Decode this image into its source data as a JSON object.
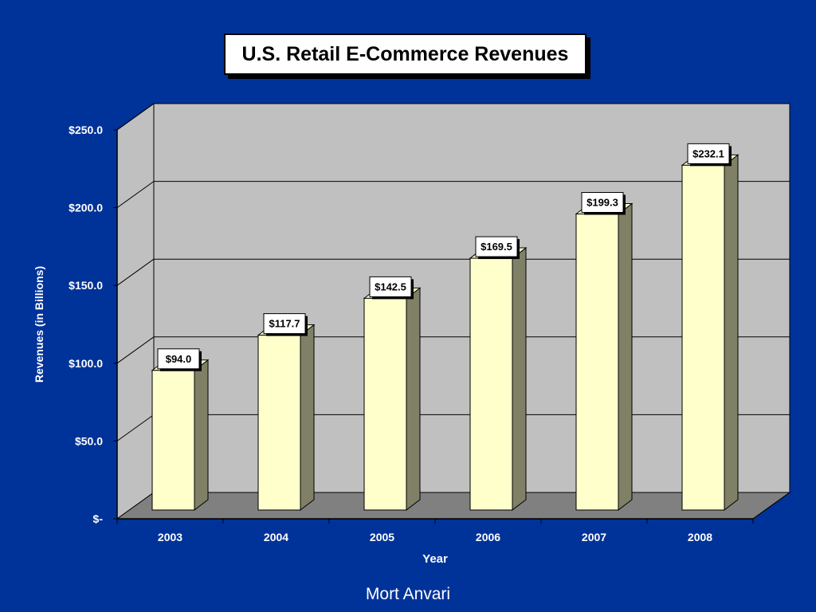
{
  "chart_data": {
    "type": "bar",
    "title": "U.S. Retail E-Commerce Revenues",
    "xlabel": "Year",
    "ylabel": "Revenues (in Billions)",
    "categories": [
      "2003",
      "2004",
      "2005",
      "2006",
      "2007",
      "2008"
    ],
    "values": [
      94.0,
      117.7,
      142.5,
      169.5,
      199.3,
      232.1
    ],
    "data_labels": [
      "$94.0",
      "$117.7",
      "$142.5",
      "$169.5",
      "$199.3",
      "$232.1"
    ],
    "ylim": [
      0,
      250
    ],
    "yticks": [
      0,
      50,
      100,
      150,
      200,
      250
    ],
    "ytick_labels": [
      "$-",
      "$50.0",
      "$100.0",
      "$150.0",
      "$200.0",
      "$250.0"
    ],
    "grid": true,
    "legend": "none",
    "three_d": true,
    "colors": {
      "background": "#003399",
      "wall": "#c0c0c0",
      "floor": "#808080",
      "bar_front": "#ffffcc",
      "bar_side": "#808066",
      "text": "#ffffff"
    }
  },
  "footer": "Mort Anvari"
}
